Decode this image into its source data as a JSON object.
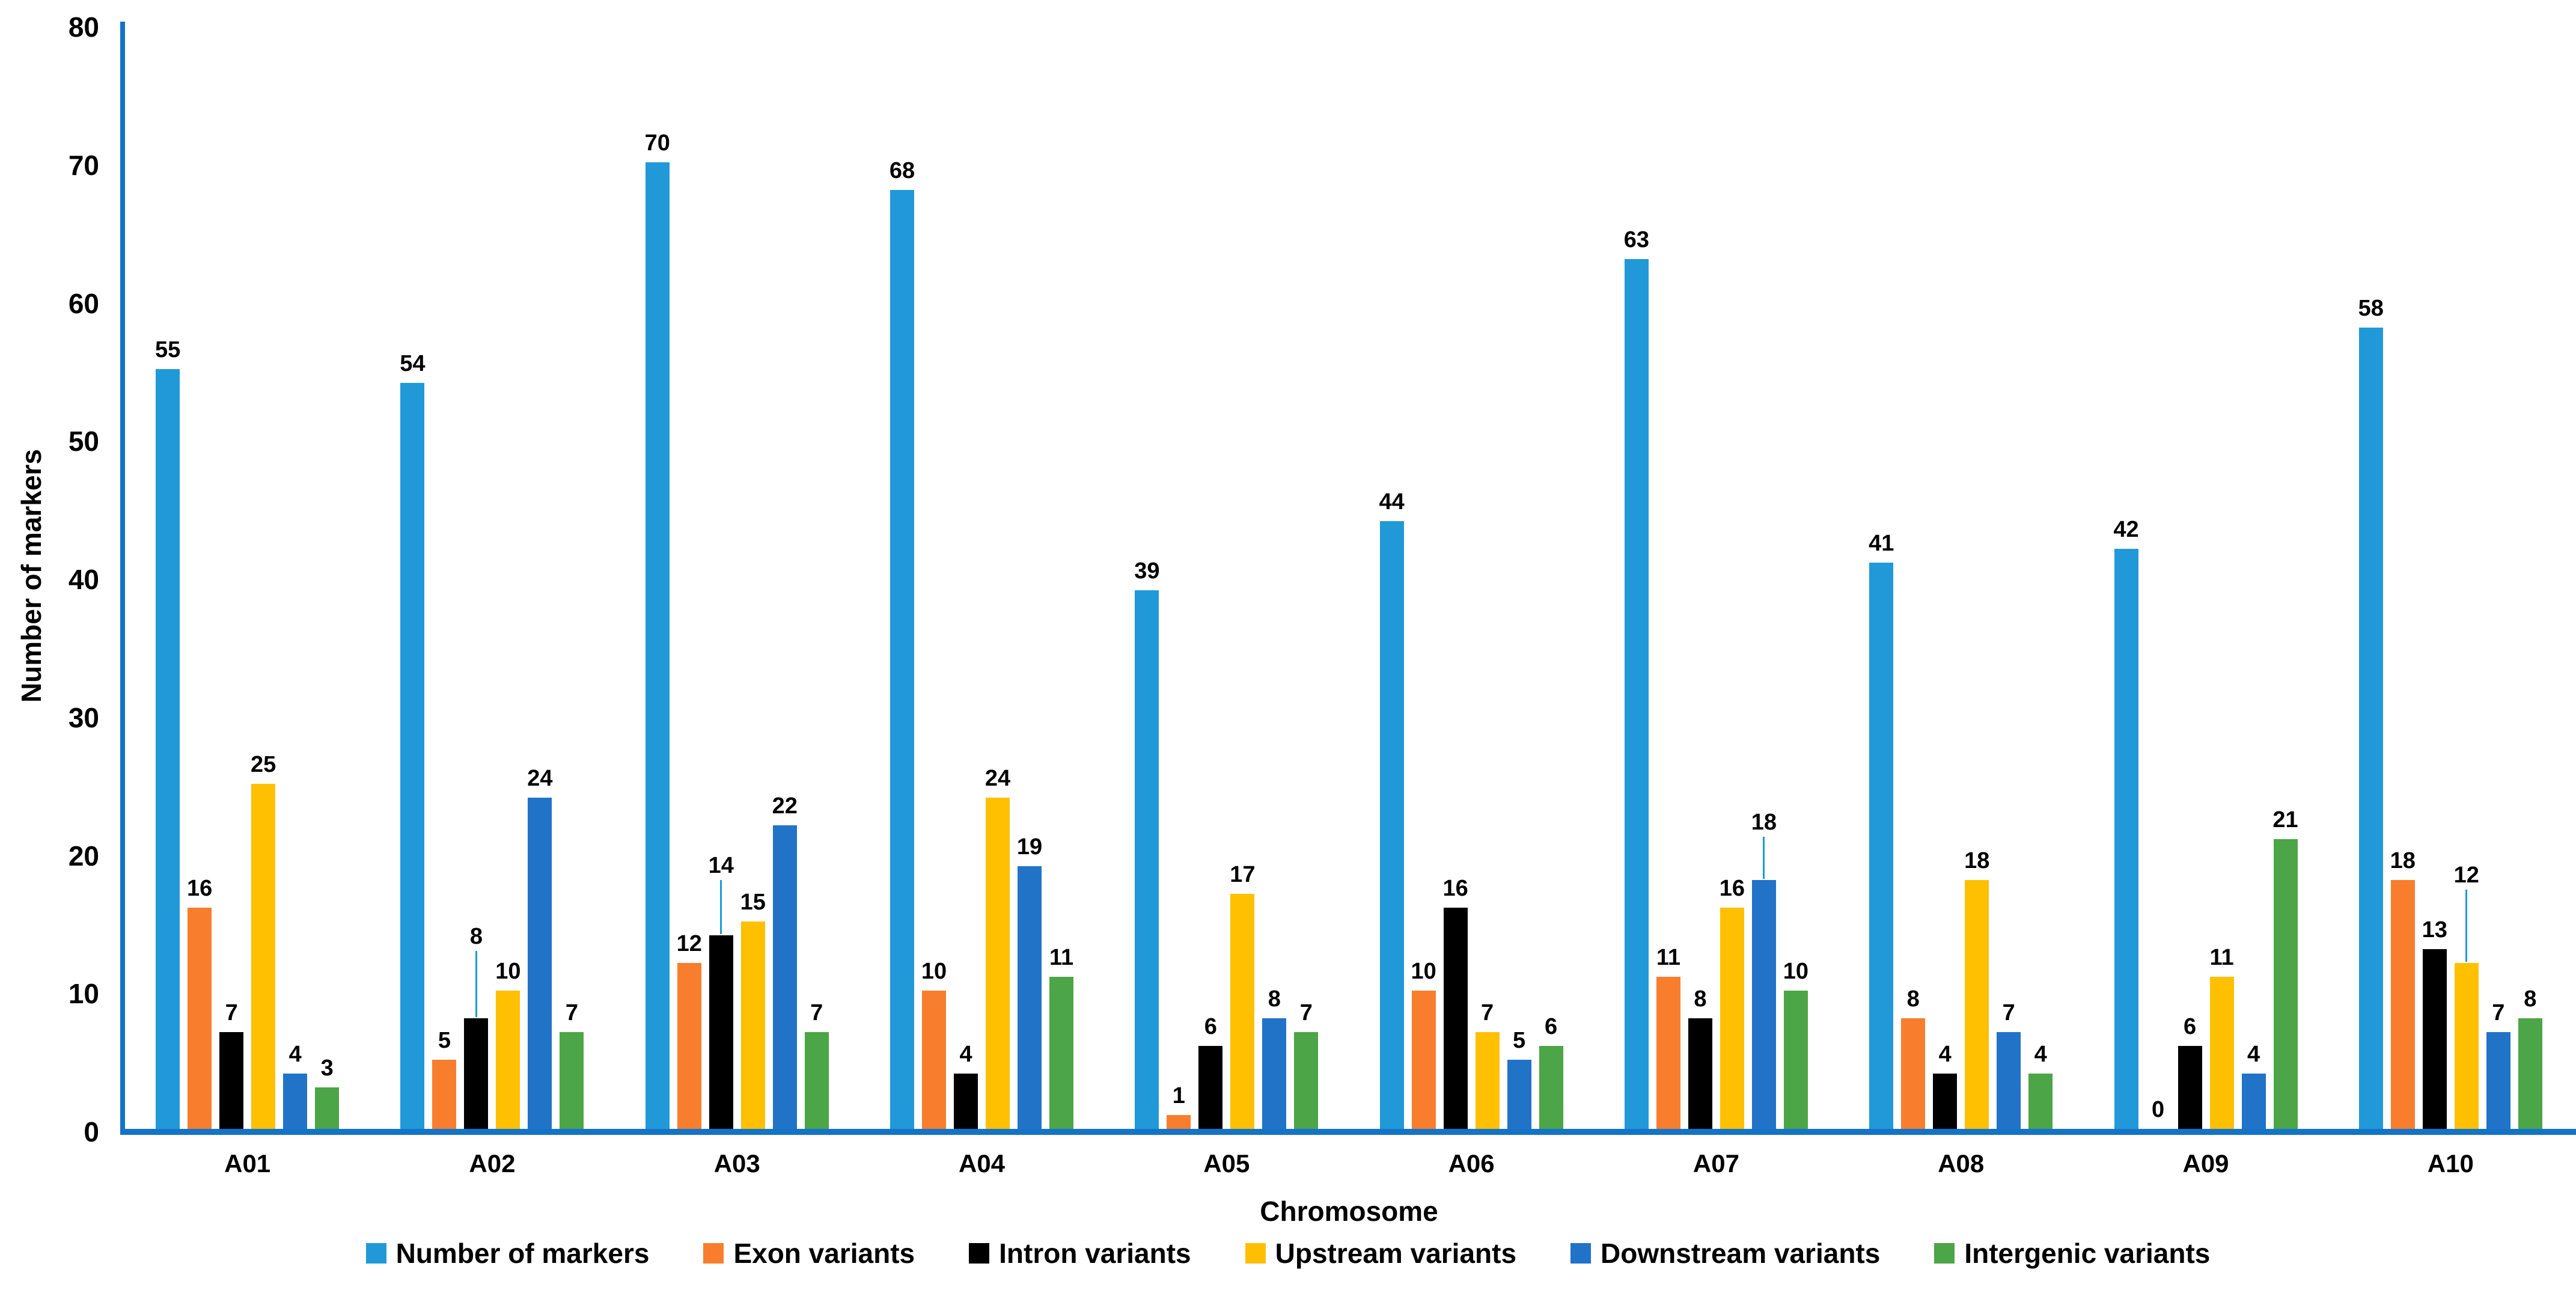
{
  "axis_color": "#1273C8",
  "leader_line_color": "#2199D8",
  "chart_data": {
    "type": "bar",
    "title": "",
    "xlabel": "Chromosome",
    "ylabel": "Number of markers",
    "ylim": [
      0,
      80
    ],
    "ytick_step": 10,
    "ytick_labels": [
      "0",
      "10",
      "20",
      "30",
      "40",
      "50",
      "60",
      "70",
      "80"
    ],
    "grid": false,
    "legend_position": "bottom",
    "categories": [
      "A01",
      "A02",
      "A03",
      "A04",
      "A05",
      "A06",
      "A07",
      "A08",
      "A09",
      "A10"
    ],
    "series": [
      {
        "name": "Number of markers",
        "color": "#2199D8",
        "values": [
          55,
          54,
          70,
          68,
          39,
          44,
          63,
          41,
          42,
          58
        ]
      },
      {
        "name": "Exon variants",
        "color": "#F87E2D",
        "values": [
          16,
          5,
          12,
          10,
          1,
          10,
          11,
          8,
          0,
          18
        ]
      },
      {
        "name": "Intron variants",
        "color": "#000000",
        "values": [
          7,
          8,
          14,
          4,
          6,
          16,
          8,
          4,
          6,
          13
        ]
      },
      {
        "name": "Upstream variants",
        "color": "#FEC001",
        "values": [
          25,
          10,
          15,
          24,
          17,
          7,
          16,
          18,
          11,
          12
        ]
      },
      {
        "name": "Downstream variants",
        "color": "#2173C8",
        "values": [
          4,
          24,
          22,
          19,
          8,
          5,
          18,
          7,
          4,
          7
        ]
      },
      {
        "name": "Intergenic variants",
        "color": "#4CA546",
        "values": [
          3,
          7,
          7,
          11,
          7,
          6,
          10,
          4,
          21,
          8
        ]
      }
    ],
    "label_leader_lines": [
      {
        "category_index": 1,
        "series_index": 2,
        "length": 110
      },
      {
        "category_index": 2,
        "series_index": 2,
        "length": 90
      },
      {
        "category_index": 6,
        "series_index": 4,
        "length": 70
      },
      {
        "category_index": 9,
        "series_index": 3,
        "length": 120
      }
    ]
  }
}
